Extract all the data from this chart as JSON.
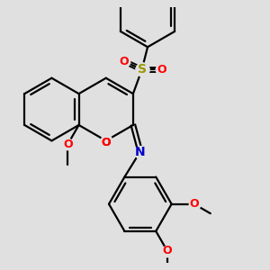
{
  "bg_color": "#e0e0e0",
  "bond_color": "#000000",
  "o_color": "#ff0000",
  "n_color": "#0000cd",
  "s_color": "#999900",
  "line_width": 1.6,
  "figsize": [
    3.0,
    3.0
  ],
  "dpi": 100,
  "xlim": [
    -2.8,
    4.2
  ],
  "ylim": [
    -3.5,
    3.2
  ]
}
